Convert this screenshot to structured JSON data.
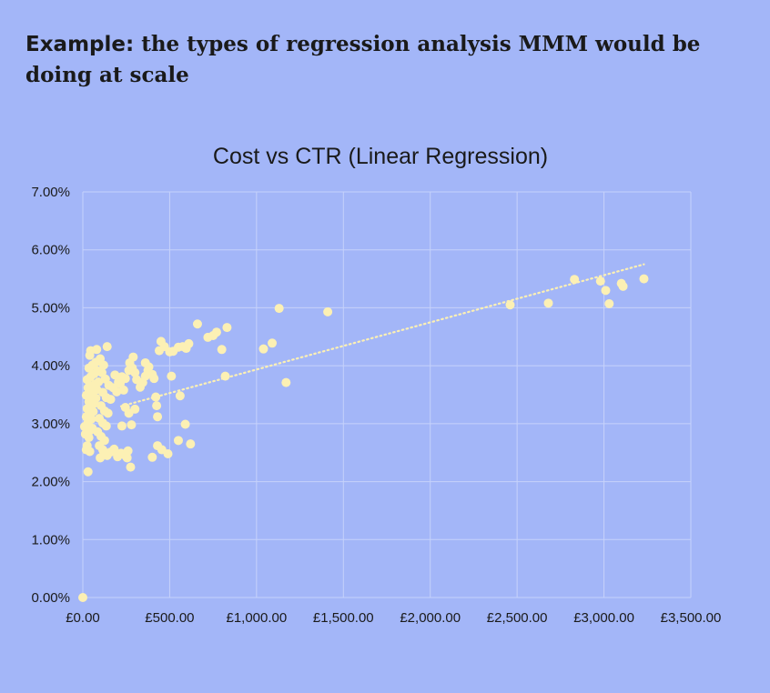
{
  "headline": {
    "lead": "Example:",
    "text": " the types of regression analysis MMM would be doing at scale"
  },
  "colors": {
    "background": "#a3b6f8",
    "point": "#fcf0b4",
    "trendline": "#fcf0b4",
    "grid": "#c6d2fb"
  },
  "chart_data": {
    "type": "scatter",
    "title": "Cost vs CTR (Linear Regression)",
    "xlabel": "",
    "ylabel": "",
    "xlim": [
      0,
      3500
    ],
    "ylim": [
      0,
      0.07
    ],
    "x_ticks": [
      "£0.00",
      "£500.00",
      "£1,000.00",
      "£1,500.00",
      "£2,000.00",
      "£2,500.00",
      "£3,000.00",
      "£3,500.00"
    ],
    "y_ticks": [
      "0.00%",
      "1.00%",
      "2.00%",
      "3.00%",
      "4.00%",
      "5.00%",
      "6.00%",
      "7.00%"
    ],
    "grid": true,
    "legend": "none",
    "trendline": {
      "type": "linear",
      "style": "dotted",
      "x": [
        220,
        3230
      ],
      "y": [
        0.033,
        0.0575
      ]
    },
    "points": [
      [
        0,
        0.0
      ],
      [
        30,
        0.0217
      ],
      [
        40,
        0.0252
      ],
      [
        20,
        0.0255
      ],
      [
        25,
        0.0262
      ],
      [
        35,
        0.0276
      ],
      [
        15,
        0.0282
      ],
      [
        45,
        0.0289
      ],
      [
        55,
        0.0292
      ],
      [
        10,
        0.0295
      ],
      [
        30,
        0.0302
      ],
      [
        50,
        0.0308
      ],
      [
        20,
        0.0312
      ],
      [
        40,
        0.0316
      ],
      [
        60,
        0.0321
      ],
      [
        25,
        0.0326
      ],
      [
        45,
        0.0331
      ],
      [
        65,
        0.0335
      ],
      [
        35,
        0.0338
      ],
      [
        55,
        0.0341
      ],
      [
        75,
        0.0344
      ],
      [
        20,
        0.0349
      ],
      [
        40,
        0.0352
      ],
      [
        60,
        0.0356
      ],
      [
        80,
        0.0359
      ],
      [
        30,
        0.0362
      ],
      [
        50,
        0.0365
      ],
      [
        70,
        0.0368
      ],
      [
        90,
        0.0372
      ],
      [
        25,
        0.0376
      ],
      [
        45,
        0.0381
      ],
      [
        65,
        0.0386
      ],
      [
        85,
        0.0391
      ],
      [
        35,
        0.0396
      ],
      [
        55,
        0.0401
      ],
      [
        75,
        0.0406
      ],
      [
        40,
        0.0418
      ],
      [
        45,
        0.0426
      ],
      [
        100,
        0.0412
      ],
      [
        80,
        0.0428
      ],
      [
        140,
        0.0433
      ],
      [
        120,
        0.0401
      ],
      [
        110,
        0.0388
      ],
      [
        130,
        0.0377
      ],
      [
        150,
        0.0366
      ],
      [
        115,
        0.0354
      ],
      [
        135,
        0.0345
      ],
      [
        160,
        0.0342
      ],
      [
        105,
        0.0331
      ],
      [
        125,
        0.0322
      ],
      [
        145,
        0.0318
      ],
      [
        95,
        0.0309
      ],
      [
        115,
        0.0301
      ],
      [
        135,
        0.0296
      ],
      [
        85,
        0.0286
      ],
      [
        105,
        0.0278
      ],
      [
        125,
        0.0271
      ],
      [
        95,
        0.0262
      ],
      [
        115,
        0.0255
      ],
      [
        135,
        0.0248
      ],
      [
        100,
        0.0241
      ],
      [
        120,
        0.0252
      ],
      [
        140,
        0.0245
      ],
      [
        160,
        0.0251
      ],
      [
        180,
        0.0256
      ],
      [
        200,
        0.0243
      ],
      [
        220,
        0.0249
      ],
      [
        240,
        0.0246
      ],
      [
        255,
        0.0241
      ],
      [
        260,
        0.0253
      ],
      [
        275,
        0.0225
      ],
      [
        175,
        0.0362
      ],
      [
        195,
        0.0355
      ],
      [
        215,
        0.0369
      ],
      [
        235,
        0.0358
      ],
      [
        185,
        0.0384
      ],
      [
        205,
        0.0372
      ],
      [
        225,
        0.0381
      ],
      [
        245,
        0.0378
      ],
      [
        265,
        0.0392
      ],
      [
        285,
        0.0396
      ],
      [
        270,
        0.0405
      ],
      [
        290,
        0.0415
      ],
      [
        300,
        0.0388
      ],
      [
        310,
        0.0376
      ],
      [
        330,
        0.0363
      ],
      [
        345,
        0.0371
      ],
      [
        360,
        0.0382
      ],
      [
        375,
        0.0392
      ],
      [
        360,
        0.0405
      ],
      [
        380,
        0.0398
      ],
      [
        400,
        0.0385
      ],
      [
        410,
        0.0378
      ],
      [
        420,
        0.0346
      ],
      [
        425,
        0.0331
      ],
      [
        430,
        0.0312
      ],
      [
        440,
        0.0426
      ],
      [
        450,
        0.0442
      ],
      [
        470,
        0.0433
      ],
      [
        500,
        0.0424
      ],
      [
        510,
        0.0382
      ],
      [
        520,
        0.0425
      ],
      [
        550,
        0.0432
      ],
      [
        560,
        0.0348
      ],
      [
        575,
        0.0433
      ],
      [
        595,
        0.043
      ],
      [
        610,
        0.0438
      ],
      [
        590,
        0.0299
      ],
      [
        620,
        0.0265
      ],
      [
        550,
        0.0271
      ],
      [
        490,
        0.0248
      ],
      [
        455,
        0.0255
      ],
      [
        430,
        0.0262
      ],
      [
        400,
        0.0242
      ],
      [
        280,
        0.0298
      ],
      [
        265,
        0.0318
      ],
      [
        245,
        0.0328
      ],
      [
        225,
        0.0296
      ],
      [
        300,
        0.0325
      ],
      [
        660,
        0.0472
      ],
      [
        720,
        0.0449
      ],
      [
        750,
        0.0452
      ],
      [
        770,
        0.0458
      ],
      [
        800,
        0.0428
      ],
      [
        830,
        0.0466
      ],
      [
        820,
        0.0382
      ],
      [
        1040,
        0.0429
      ],
      [
        1090,
        0.0439
      ],
      [
        1130,
        0.0499
      ],
      [
        1170,
        0.0371
      ],
      [
        1410,
        0.0493
      ],
      [
        2460,
        0.0505
      ],
      [
        2680,
        0.0508
      ],
      [
        2830,
        0.0549
      ],
      [
        2980,
        0.0546
      ],
      [
        3010,
        0.053
      ],
      [
        3030,
        0.0507
      ],
      [
        3100,
        0.0542
      ],
      [
        3110,
        0.0537
      ],
      [
        3230,
        0.055
      ]
    ]
  }
}
